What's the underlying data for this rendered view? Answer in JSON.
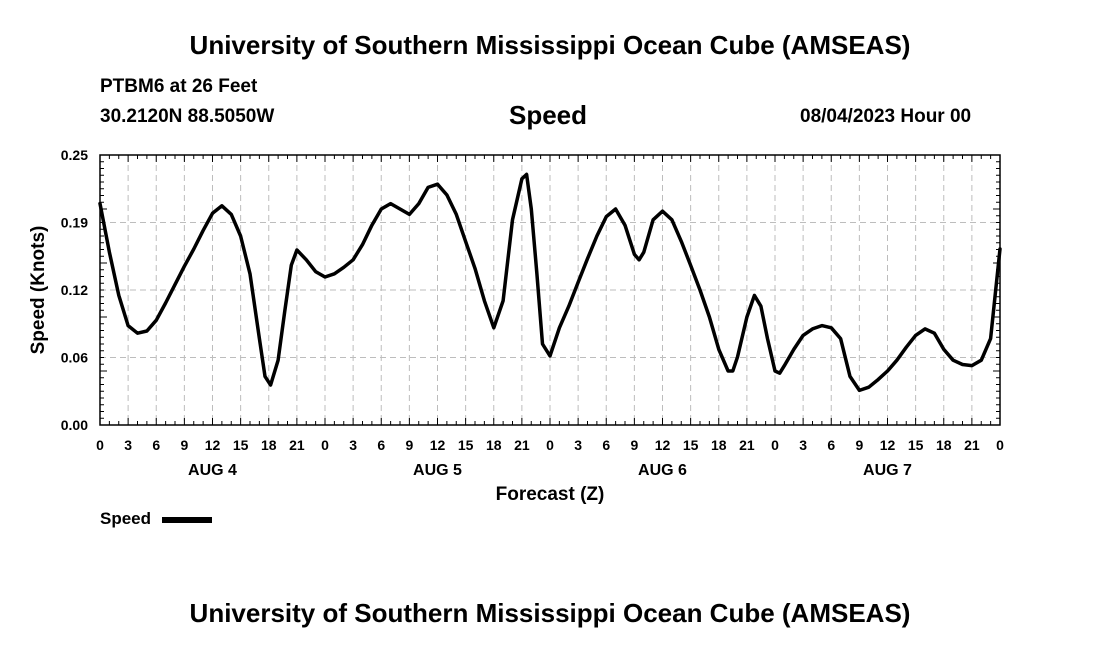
{
  "header": {
    "title": "University of Southern Mississippi Ocean Cube (AMSEAS)",
    "station": "PTBM6 at 26 Feet",
    "coords": "30.2120N  88.5050W",
    "variable": "Speed",
    "timestamp": "08/04/2023 Hour 00"
  },
  "footer": {
    "title": "University of Southern Mississippi Ocean Cube (AMSEAS)"
  },
  "legend": {
    "label": "Speed"
  },
  "chart_data": {
    "type": "line",
    "title": "Speed",
    "xlabel": "Forecast (Z)",
    "ylabel": "Speed (Knots)",
    "ylim": [
      0,
      0.25
    ],
    "y_ticks": [
      "0.00",
      "0.06",
      "0.12",
      "0.19",
      "0.25"
    ],
    "y_tick_values": [
      0,
      0.0625,
      0.125,
      0.1875,
      0.25
    ],
    "x_range_hours": [
      0,
      96
    ],
    "x_tick_labels": [
      "0",
      "3",
      "6",
      "9",
      "12",
      "15",
      "18",
      "21",
      "0",
      "3",
      "6",
      "9",
      "12",
      "15",
      "18",
      "21",
      "0",
      "3",
      "6",
      "9",
      "12",
      "15",
      "18",
      "21",
      "0",
      "3",
      "6",
      "9",
      "12",
      "15",
      "18",
      "21",
      "0"
    ],
    "day_labels": [
      {
        "label": "AUG 4",
        "hour": 12
      },
      {
        "label": "AUG 5",
        "hour": 36
      },
      {
        "label": "AUG 6",
        "hour": 60
      },
      {
        "label": "AUG 7",
        "hour": 84
      }
    ],
    "grid": true,
    "legend_position": "bottom-left",
    "series": [
      {
        "name": "Speed",
        "color": "#000000",
        "points": [
          [
            0,
            0.205
          ],
          [
            1,
            0.16
          ],
          [
            2,
            0.12
          ],
          [
            3,
            0.092
          ],
          [
            4,
            0.085
          ],
          [
            5,
            0.087
          ],
          [
            6,
            0.097
          ],
          [
            7,
            0.113
          ],
          [
            8,
            0.13
          ],
          [
            9,
            0.147
          ],
          [
            10,
            0.163
          ],
          [
            11,
            0.18
          ],
          [
            12,
            0.196
          ],
          [
            13,
            0.203
          ],
          [
            14,
            0.195
          ],
          [
            15,
            0.175
          ],
          [
            16,
            0.14
          ],
          [
            17,
            0.08
          ],
          [
            17.6,
            0.045
          ],
          [
            18.2,
            0.037
          ],
          [
            19,
            0.06
          ],
          [
            19.7,
            0.105
          ],
          [
            20.4,
            0.148
          ],
          [
            21,
            0.162
          ],
          [
            22,
            0.153
          ],
          [
            23,
            0.142
          ],
          [
            24,
            0.137
          ],
          [
            25,
            0.14
          ],
          [
            26,
            0.146
          ],
          [
            27,
            0.153
          ],
          [
            28,
            0.167
          ],
          [
            29,
            0.185
          ],
          [
            30,
            0.2
          ],
          [
            31,
            0.205
          ],
          [
            32,
            0.2
          ],
          [
            33,
            0.195
          ],
          [
            34,
            0.205
          ],
          [
            35,
            0.22
          ],
          [
            36,
            0.223
          ],
          [
            37,
            0.213
          ],
          [
            38,
            0.195
          ],
          [
            39,
            0.17
          ],
          [
            40,
            0.145
          ],
          [
            41,
            0.115
          ],
          [
            42,
            0.09
          ],
          [
            43,
            0.115
          ],
          [
            44,
            0.19
          ],
          [
            45,
            0.228
          ],
          [
            45.5,
            0.232
          ],
          [
            46,
            0.2
          ],
          [
            46.6,
            0.14
          ],
          [
            47.2,
            0.075
          ],
          [
            48,
            0.064
          ],
          [
            49,
            0.09
          ],
          [
            50,
            0.11
          ],
          [
            51,
            0.132
          ],
          [
            52,
            0.154
          ],
          [
            53,
            0.175
          ],
          [
            54,
            0.193
          ],
          [
            55,
            0.2
          ],
          [
            56,
            0.185
          ],
          [
            57,
            0.158
          ],
          [
            57.5,
            0.153
          ],
          [
            58,
            0.16
          ],
          [
            59,
            0.19
          ],
          [
            60,
            0.198
          ],
          [
            61,
            0.19
          ],
          [
            62,
            0.17
          ],
          [
            63,
            0.148
          ],
          [
            64,
            0.125
          ],
          [
            65,
            0.1
          ],
          [
            66,
            0.07
          ],
          [
            67,
            0.05
          ],
          [
            67.5,
            0.05
          ],
          [
            68,
            0.063
          ],
          [
            69,
            0.1
          ],
          [
            69.8,
            0.12
          ],
          [
            70.5,
            0.11
          ],
          [
            71.2,
            0.08
          ],
          [
            72,
            0.05
          ],
          [
            72.5,
            0.048
          ],
          [
            73,
            0.055
          ],
          [
            74,
            0.07
          ],
          [
            75,
            0.083
          ],
          [
            76,
            0.089
          ],
          [
            77,
            0.092
          ],
          [
            78,
            0.09
          ],
          [
            79,
            0.08
          ],
          [
            80,
            0.045
          ],
          [
            81,
            0.032
          ],
          [
            82,
            0.035
          ],
          [
            83,
            0.042
          ],
          [
            84,
            0.05
          ],
          [
            85,
            0.06
          ],
          [
            86,
            0.072
          ],
          [
            87,
            0.083
          ],
          [
            88,
            0.089
          ],
          [
            89,
            0.085
          ],
          [
            90,
            0.07
          ],
          [
            91,
            0.06
          ],
          [
            92,
            0.056
          ],
          [
            93,
            0.055
          ],
          [
            94,
            0.06
          ],
          [
            95,
            0.08
          ],
          [
            96,
            0.163
          ]
        ]
      }
    ]
  }
}
